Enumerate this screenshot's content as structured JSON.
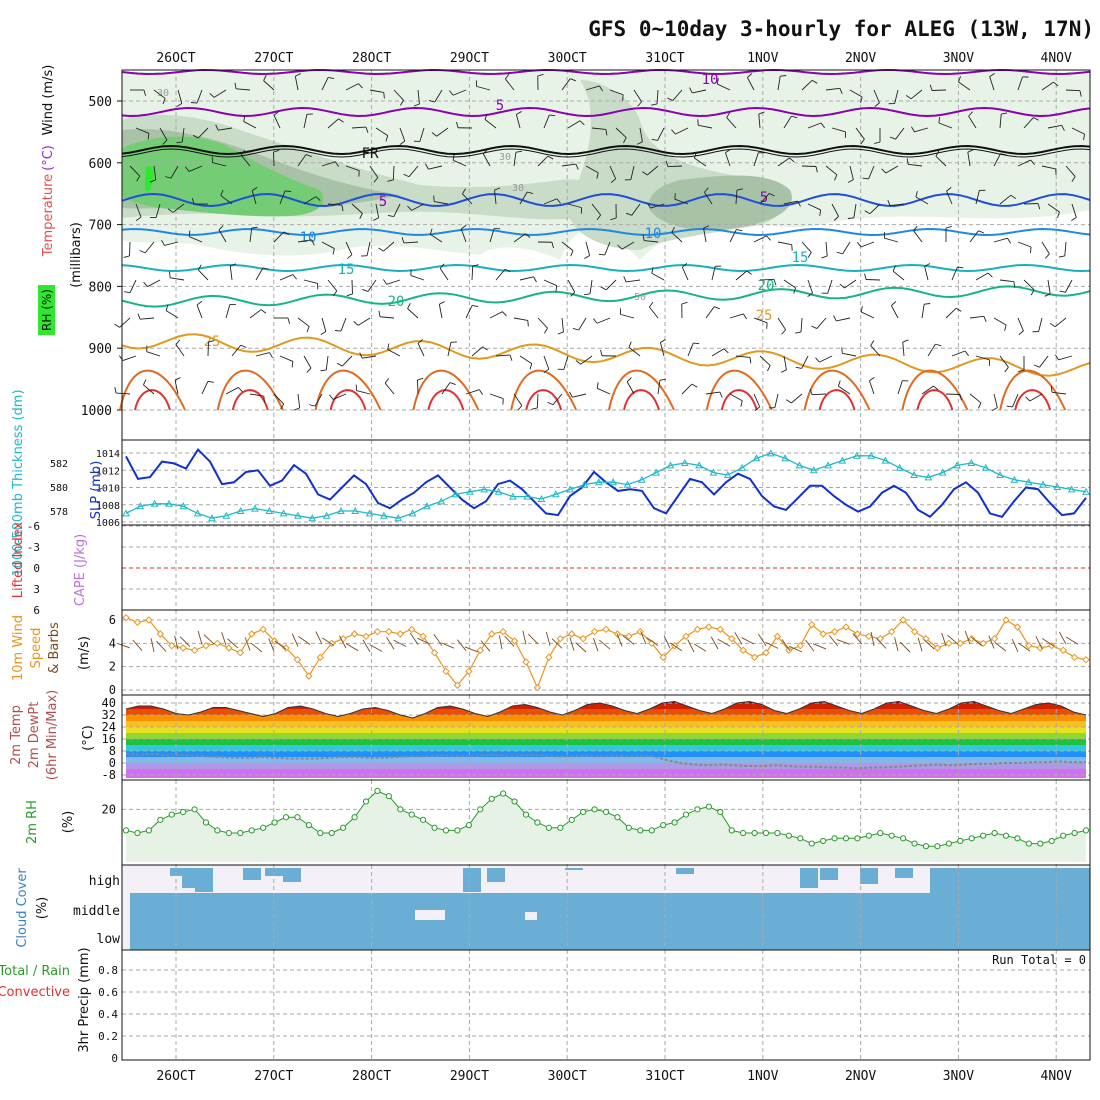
{
  "chart_data": {
    "type": "line",
    "title": "GFS 0~10day 3-hourly for ALEG (13W, 17N)",
    "date_labels": [
      "26OCT",
      "27OCT",
      "28OCT",
      "29OCT",
      "30OCT",
      "31OCT",
      "1NOV",
      "2NOV",
      "3NOV",
      "4NOV"
    ],
    "panels": [
      {
        "id": "upper-air",
        "type": "contour",
        "ylabel_parts": [
          {
            "text": "RH (%)",
            "color": "#2e8b2e"
          },
          {
            "text": "Temperature",
            "color": "#e05050"
          },
          {
            "text": "(°C)",
            "color": "#8a2be2"
          },
          {
            "text": "Wind (m/s)",
            "color": "#111111"
          }
        ],
        "ylabel_units": "(millibars)",
        "y_ticks": [
          "500",
          "600",
          "700",
          "800",
          "900",
          "1000"
        ],
        "ylim": [
          450,
          1010
        ],
        "contour_labels": [
          "10",
          "5",
          "FR",
          "5",
          "10",
          "15",
          "20",
          "25",
          "15",
          "20",
          "25",
          "10",
          "5",
          "30",
          "30",
          "50",
          "30"
        ],
        "isotherm_colors": {
          "-10": "#8b00b0",
          "-5": "#8b00b0",
          "FR": "#111111",
          "5": "#1f4fd6",
          "10": "#1e88e5",
          "15": "#17b0c0",
          "20": "#17b38a",
          "25": "#e09a20",
          "30": "#e06a20",
          "35": "#e03030"
        },
        "rh_colors": [
          "#e8f3e8",
          "#c8dcc8",
          "#a8c2a8",
          "#74cc74",
          "#2ee82e"
        ]
      },
      {
        "id": "thickness-slp",
        "type": "line",
        "ylabel_left": "1000-500mb Thickness (dm)",
        "ylabel_right": "SLP (mb)",
        "left_ticks": [
          "582",
          "580",
          "578"
        ],
        "right_ticks": [
          "1014",
          "1012",
          "1010",
          "1008",
          "1006"
        ],
        "series": [
          {
            "name": "SLP (mb)",
            "color": "#1030d0",
            "values": [
              1013.6,
              1011.0,
              1011.2,
              1013.0,
              1012.8,
              1012.2,
              1014.4,
              1013.0,
              1010.4,
              1010.6,
              1011.8,
              1012.0,
              1010.2,
              1010.8,
              1012.6,
              1011.6,
              1009.2,
              1008.6,
              1010.0,
              1011.4,
              1010.4,
              1008.2,
              1007.6,
              1008.6,
              1009.4,
              1010.6,
              1011.4,
              1010.0,
              1008.6,
              1007.6,
              1008.4,
              1010.4,
              1010.8,
              1009.8,
              1008.4,
              1007.0,
              1006.8,
              1009.0,
              1010.0,
              1011.8,
              1010.6,
              1009.6,
              1009.8,
              1009.6,
              1007.6,
              1007.0,
              1009.0,
              1011.0,
              1010.6,
              1009.2,
              1010.6,
              1011.6,
              1011.0,
              1009.0,
              1007.8,
              1007.4,
              1008.8,
              1010.2,
              1010.2,
              1009.0,
              1008.0,
              1007.2,
              1007.8,
              1009.4,
              1010.2,
              1009.4,
              1007.4,
              1006.6,
              1008.0,
              1009.8,
              1010.6,
              1009.4,
              1007.0,
              1006.6,
              1008.4,
              1010.0,
              1009.8,
              1008.2,
              1006.8,
              1007.0,
              1008.8
            ]
          },
          {
            "name": "1000-500mb Thickness (dm)",
            "color": "#20b8c8",
            "values": [
              577.8,
              578.4,
              578.6,
              578.6,
              578.4,
              577.8,
              577.4,
              577.6,
              578.0,
              578.2,
              578.0,
              577.8,
              577.6,
              577.4,
              577.6,
              578.0,
              578.0,
              577.8,
              577.6,
              577.4,
              577.8,
              578.4,
              578.8,
              579.4,
              579.6,
              579.8,
              579.6,
              579.2,
              579.2,
              579.0,
              579.4,
              579.8,
              580.2,
              580.4,
              580.4,
              580.2,
              580.6,
              581.2,
              581.8,
              582.0,
              581.8,
              581.2,
              581.0,
              581.6,
              582.4,
              582.8,
              582.4,
              581.8,
              581.4,
              581.8,
              582.2,
              582.6,
              582.6,
              582.2,
              581.6,
              581.0,
              580.8,
              581.2,
              581.8,
              582.0,
              581.6,
              581.0,
              580.6,
              580.4,
              580.2,
              580.0,
              579.8,
              579.6
            ]
          }
        ]
      },
      {
        "id": "cape-li",
        "type": "line",
        "ylabel_left": "Lifted Index",
        "ylabel_right": "CAPE (J/kg)",
        "left_ticks": [
          "-6",
          "-3",
          "0",
          "3",
          "6"
        ]
      },
      {
        "id": "wind10m",
        "type": "line",
        "ylabel": "10m Wind Speed & Barbs (m/s)",
        "y_ticks": [
          "6",
          "4",
          "2",
          "0"
        ],
        "ylim": [
          0,
          7
        ],
        "series": [
          {
            "name": "Speed",
            "color": "#e89520",
            "values": [
              6.2,
              5.8,
              6.0,
              4.8,
              3.8,
              3.6,
              3.4,
              3.8,
              4.0,
              3.6,
              3.2,
              4.8,
              5.2,
              4.2,
              3.6,
              2.6,
              1.2,
              2.8,
              4.0,
              4.4,
              4.8,
              4.6,
              5.0,
              5.0,
              4.8,
              5.2,
              4.6,
              3.2,
              1.6,
              0.4,
              1.6,
              3.4,
              4.8,
              5.0,
              4.2,
              2.4,
              0.2,
              2.8,
              4.4,
              4.8,
              4.4,
              5.0,
              5.2,
              4.8,
              4.6,
              5.0,
              4.0,
              2.8,
              3.8,
              4.6,
              5.2,
              5.4,
              5.2,
              4.4,
              3.4,
              2.8,
              3.2,
              4.6,
              3.4,
              3.8,
              5.6,
              4.8,
              5.0,
              5.4,
              4.8,
              4.6,
              4.4,
              5.0,
              6.0,
              5.0,
              4.4,
              3.6,
              4.0,
              4.0,
              4.4,
              4.0,
              4.4,
              6.0,
              5.4,
              3.8,
              3.6,
              3.8,
              3.4,
              2.8,
              2.6
            ]
          }
        ]
      },
      {
        "id": "temperature2m",
        "type": "area",
        "ylabel_parts": [
          "2m Temp",
          "2m DewPt",
          "(6hr Min/Max)"
        ],
        "ylabel_right": "(°C)",
        "y_ticks": [
          "40",
          "32",
          "24",
          "16",
          "8",
          "0",
          "-8"
        ],
        "ylim": [
          -10,
          42
        ],
        "band_colors": [
          "#d070f0",
          "#b098e8",
          "#80b8f0",
          "#2090ff",
          "#30c8e0",
          "#20c040",
          "#90d830",
          "#e8e020",
          "#f8c020",
          "#f89000",
          "#e85000",
          "#d02000",
          "#900000"
        ],
        "series": [
          {
            "name": "2m Temp",
            "color": "#333333",
            "values": [
              36,
              38,
              38,
              36,
              33,
              32,
              34,
              37,
              37,
              35,
              33,
              31,
              33,
              37,
              38,
              36,
              33,
              31,
              33,
              36,
              37,
              35,
              32,
              30,
              33,
              37,
              38,
              36,
              33,
              31,
              34,
              38,
              39,
              37,
              34,
              32,
              35,
              39,
              40,
              38,
              35,
              33,
              36,
              40,
              41,
              38,
              35,
              33,
              36,
              40,
              41,
              39,
              35,
              33,
              36,
              40,
              41,
              38,
              35,
              33,
              36,
              40,
              41,
              38,
              35,
              33,
              36,
              40,
              41,
              38,
              35,
              33,
              36,
              39,
              40,
              38,
              34,
              32
            ]
          },
          {
            "name": "2m DewPt",
            "color": "#888888",
            "values": [
              6,
              5.5,
              6,
              5,
              5.5,
              5,
              4.5,
              4,
              3.5,
              3.5,
              4,
              3.5,
              3,
              3,
              3,
              3.5,
              4,
              4,
              3.5,
              3.5,
              4,
              4.5,
              4.5,
              5,
              5,
              4.5,
              5,
              5.5,
              5,
              5,
              5.5,
              5,
              4.5,
              4.5,
              5,
              4.5,
              5,
              4.5,
              5,
              4.5,
              2,
              0,
              -1,
              -1.5,
              -1,
              -1.5,
              -2,
              -2,
              -1.5,
              -2,
              -2.5,
              -2.5,
              -3,
              -3,
              -3.5,
              -3,
              -3,
              -2.5,
              -2,
              -1.5,
              -1,
              -1.5,
              -1,
              -0.5,
              -0.5,
              0,
              0,
              0.5,
              0.5,
              1,
              0.5,
              0.5
            ]
          }
        ]
      },
      {
        "id": "rh2m",
        "type": "area",
        "ylabel": "2m RH (%)",
        "y_ticks": [
          "20"
        ],
        "ylim": [
          0,
          32
        ],
        "series": [
          {
            "name": "2m RH",
            "color": "#2a9a2a",
            "values": [
              12,
              11,
              12,
              16,
              18,
              19,
              20,
              15,
              12,
              11,
              11,
              12,
              13,
              15,
              17,
              17,
              14,
              11,
              11,
              13,
              17,
              23,
              27,
              25,
              20,
              18,
              16,
              13,
              12,
              12,
              14,
              20,
              24,
              26,
              23,
              18,
              15,
              13,
              13,
              16,
              19,
              20,
              19,
              17,
              13,
              12,
              12,
              14,
              15,
              18,
              20,
              21,
              19,
              12,
              11,
              11,
              11,
              11,
              10,
              9,
              7,
              8,
              9,
              9,
              9,
              10,
              11,
              10,
              9,
              7,
              6,
              6,
              7,
              8,
              9,
              10,
              11,
              10,
              9,
              7,
              7,
              8,
              10,
              11,
              12
            ]
          }
        ]
      },
      {
        "id": "cloud-cover",
        "type": "area",
        "ylabel": "Cloud Cover (%)",
        "y_ticks": [
          "high",
          "middle",
          "low"
        ],
        "fill_color": "#6aaed6"
      },
      {
        "id": "precip",
        "type": "bar",
        "ylabel": "3hr Precip (mm)",
        "ylabel_left_parts": [
          {
            "text": "Total / Rain",
            "color": "#2a9a2a"
          },
          {
            "text": "Convective",
            "color": "#e03030"
          }
        ],
        "y_ticks": [
          "0.8",
          "0.6",
          "0.4",
          "0.2",
          "0"
        ],
        "ylim": [
          0,
          0.9
        ],
        "run_total": "Run Total = 0"
      }
    ]
  }
}
